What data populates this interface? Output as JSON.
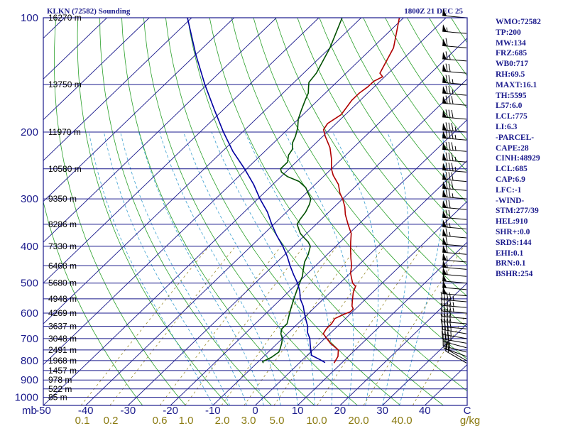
{
  "header": {
    "station_title": "KLKN (72582) Sounding",
    "valid_time": "1800Z 21 DEC 25"
  },
  "indices": [
    "WMO:72582",
    "TP:200",
    "MW:134",
    "FRZ:685",
    "WB0:717",
    "RH:69.5",
    "MAXT:16.1",
    "TH:5595",
    "L57:6.0",
    "LCL:775",
    "LI:6.3",
    "-PARCEL-",
    "CAPE:28",
    "CINH:48929",
    "LCL:685",
    "CAP:6.9",
    "LFC:-1",
    "-WIND-",
    "STM:277/39",
    "HEL:910",
    "SHR+:0.0",
    "SRDS:144",
    "EHI:0.1",
    "BRN:0.1",
    "BSHR:254"
  ],
  "colors": {
    "frame": "#1a1a8c",
    "isobar": "#1a1a8c",
    "isotherm": "#1a1a8c",
    "dry_adiabat": "#2aa02a",
    "moist_adiabat": "#3a9fd0",
    "mixing_ratio": "#8a7a10",
    "temperature": "#b00000",
    "dewpoint": "#005000",
    "parcel": "#0000a0",
    "wind_barb": "#000000"
  },
  "chart_data": {
    "type": "line",
    "title": "KLKN (72582) Sounding",
    "xlabel": "",
    "ylabel": "",
    "x_unit": "°C",
    "y_unit": "mb",
    "y_scale": "log",
    "xlim": [
      -50,
      50
    ],
    "ylim": [
      1000,
      100
    ],
    "pressure_ticks": [
      "100",
      "200",
      "300",
      "400",
      "500",
      "600",
      "700",
      "800",
      "900",
      "1000"
    ],
    "y_axis_unit_label": "mb",
    "temp_tick_labels": [
      "-50",
      "-40",
      "-30",
      "-20",
      "-10",
      "0",
      "10",
      "20",
      "30",
      "40",
      "C"
    ],
    "mixing_ratio_labels": [
      "0.1",
      "0.2",
      "0.6",
      "1.0",
      "2.0",
      "3.0",
      "5.0",
      "10.0",
      "20.0",
      "40.0",
      "g/kg"
    ],
    "height_labels": [
      {
        "p": 100,
        "label": "16270 m"
      },
      {
        "p": 150,
        "label": "13750 m"
      },
      {
        "p": 200,
        "label": "11970 m"
      },
      {
        "p": 250,
        "label": "10580 m"
      },
      {
        "p": 300,
        "label": "9350 m"
      },
      {
        "p": 350,
        "label": "8286 m"
      },
      {
        "p": 400,
        "label": "7330 m"
      },
      {
        "p": 450,
        "label": "6468 m"
      },
      {
        "p": 500,
        "label": "5680 m"
      },
      {
        "p": 550,
        "label": "4948 m"
      },
      {
        "p": 600,
        "label": "4269 m"
      },
      {
        "p": 650,
        "label": "3637 m"
      },
      {
        "p": 700,
        "label": "3048 m"
      },
      {
        "p": 750,
        "label": "2491 m"
      },
      {
        "p": 800,
        "label": "1968 m"
      },
      {
        "p": 850,
        "label": "1457 m"
      },
      {
        "p": 900,
        "label": "978 m"
      },
      {
        "p": 950,
        "label": "522 m"
      },
      {
        "p": 1000,
        "label": "85 m"
      }
    ],
    "series": [
      {
        "role": "temperature",
        "points": [
          [
            812,
            8.2
          ],
          [
            780,
            7.5
          ],
          [
            750,
            6.0
          ],
          [
            720,
            2.5
          ],
          [
            700,
            0.5
          ],
          [
            680,
            -1.5
          ],
          [
            660,
            -2.0
          ],
          [
            640,
            -2.0
          ],
          [
            620,
            -2.5
          ],
          [
            605,
            -1.5
          ],
          [
            595,
            -0.5
          ],
          [
            585,
            -0.5
          ],
          [
            575,
            -1.5
          ],
          [
            560,
            -2.5
          ],
          [
            545,
            -3.5
          ],
          [
            530,
            -4.5
          ],
          [
            510,
            -5.5
          ],
          [
            500,
            -7.0
          ],
          [
            485,
            -8.5
          ],
          [
            470,
            -10.0
          ],
          [
            450,
            -11.5
          ],
          [
            430,
            -13.5
          ],
          [
            410,
            -15.5
          ],
          [
            390,
            -17.5
          ],
          [
            370,
            -19.5
          ],
          [
            350,
            -22.5
          ],
          [
            330,
            -25.5
          ],
          [
            315,
            -27.5
          ],
          [
            300,
            -30.0
          ],
          [
            290,
            -32.0
          ],
          [
            275,
            -34.5
          ],
          [
            260,
            -38.0
          ],
          [
            250,
            -40.0
          ],
          [
            235,
            -42.5
          ],
          [
            220,
            -45.5
          ],
          [
            205,
            -49.5
          ],
          [
            197,
            -51.5
          ],
          [
            190,
            -52.0
          ],
          [
            180,
            -51.0
          ],
          [
            172,
            -51.5
          ],
          [
            165,
            -52.0
          ],
          [
            158,
            -52.0
          ],
          [
            152,
            -51.5
          ],
          [
            150,
            -51.5
          ],
          [
            147,
            -51.5
          ],
          [
            143,
            -50.5
          ],
          [
            140,
            -52.0
          ],
          [
            120,
            -55.0
          ],
          [
            100,
            -61.0
          ]
        ]
      },
      {
        "role": "dewpoint",
        "points": [
          [
            812,
            -8.5
          ],
          [
            805,
            -9.0
          ],
          [
            795,
            -8.5
          ],
          [
            785,
            -8.0
          ],
          [
            760,
            -7.5
          ],
          [
            745,
            -8.0
          ],
          [
            720,
            -9.0
          ],
          [
            700,
            -10.0
          ],
          [
            680,
            -11.5
          ],
          [
            660,
            -12.5
          ],
          [
            640,
            -12.5
          ],
          [
            620,
            -13.5
          ],
          [
            600,
            -14.5
          ],
          [
            580,
            -15.5
          ],
          [
            560,
            -16.5
          ],
          [
            540,
            -17.5
          ],
          [
            520,
            -18.5
          ],
          [
            500,
            -19.5
          ],
          [
            480,
            -20.5
          ],
          [
            460,
            -22.0
          ],
          [
            440,
            -23.5
          ],
          [
            420,
            -24.5
          ],
          [
            400,
            -26.0
          ],
          [
            390,
            -27.5
          ],
          [
            380,
            -29.5
          ],
          [
            370,
            -31.5
          ],
          [
            360,
            -33.0
          ],
          [
            350,
            -34.5
          ],
          [
            340,
            -35.0
          ],
          [
            325,
            -35.5
          ],
          [
            310,
            -36.5
          ],
          [
            300,
            -37.5
          ],
          [
            290,
            -39.5
          ],
          [
            280,
            -41.5
          ],
          [
            270,
            -44.5
          ],
          [
            262,
            -48.5
          ],
          [
            255,
            -51.0
          ],
          [
            250,
            -52.0
          ],
          [
            240,
            -52.0
          ],
          [
            230,
            -53.5
          ],
          [
            222,
            -54.0
          ],
          [
            214,
            -55.5
          ],
          [
            205,
            -56.5
          ],
          [
            195,
            -58.0
          ],
          [
            185,
            -60.0
          ],
          [
            175,
            -61.5
          ],
          [
            165,
            -63.0
          ],
          [
            158,
            -64.0
          ],
          [
            152,
            -65.5
          ],
          [
            148,
            -66.5
          ],
          [
            140,
            -67.0
          ],
          [
            120,
            -70.0
          ],
          [
            100,
            -74.5
          ]
        ]
      },
      {
        "role": "parcel",
        "points": [
          [
            810,
            6.0
          ],
          [
            795,
            4.0
          ],
          [
            775,
            1.0
          ],
          [
            750,
            -0.5
          ],
          [
            725,
            -2.0
          ],
          [
            700,
            -3.5
          ],
          [
            675,
            -5.5
          ],
          [
            650,
            -7.0
          ],
          [
            625,
            -9.0
          ],
          [
            600,
            -11.0
          ],
          [
            575,
            -13.0
          ],
          [
            550,
            -15.5
          ],
          [
            525,
            -17.5
          ],
          [
            500,
            -20.0
          ],
          [
            475,
            -23.0
          ],
          [
            450,
            -26.0
          ],
          [
            425,
            -29.0
          ],
          [
            400,
            -32.5
          ],
          [
            375,
            -36.5
          ],
          [
            350,
            -40.5
          ],
          [
            325,
            -44.5
          ],
          [
            300,
            -49.5
          ],
          [
            275,
            -54.5
          ],
          [
            250,
            -60.5
          ],
          [
            225,
            -67.5
          ],
          [
            200,
            -74.5
          ],
          [
            175,
            -82.0
          ],
          [
            150,
            -90.5
          ],
          [
            125,
            -100.0
          ],
          [
            100,
            -111.0
          ]
        ]
      }
    ],
    "wind_barbs": [
      {
        "p": 812,
        "dir": 300,
        "kt": 15
      },
      {
        "p": 800,
        "dir": 300,
        "kt": 20
      },
      {
        "p": 780,
        "dir": 290,
        "kt": 25
      },
      {
        "p": 760,
        "dir": 285,
        "kt": 30
      },
      {
        "p": 740,
        "dir": 285,
        "kt": 30
      },
      {
        "p": 720,
        "dir": 280,
        "kt": 35
      },
      {
        "p": 700,
        "dir": 280,
        "kt": 35
      },
      {
        "p": 680,
        "dir": 280,
        "kt": 35
      },
      {
        "p": 660,
        "dir": 275,
        "kt": 40
      },
      {
        "p": 640,
        "dir": 275,
        "kt": 40
      },
      {
        "p": 620,
        "dir": 275,
        "kt": 40
      },
      {
        "p": 600,
        "dir": 275,
        "kt": 45
      },
      {
        "p": 580,
        "dir": 275,
        "kt": 45
      },
      {
        "p": 560,
        "dir": 275,
        "kt": 45
      },
      {
        "p": 540,
        "dir": 275,
        "kt": 50
      },
      {
        "p": 520,
        "dir": 275,
        "kt": 50
      },
      {
        "p": 500,
        "dir": 275,
        "kt": 50
      },
      {
        "p": 480,
        "dir": 275,
        "kt": 55
      },
      {
        "p": 460,
        "dir": 275,
        "kt": 55
      },
      {
        "p": 440,
        "dir": 275,
        "kt": 55
      },
      {
        "p": 420,
        "dir": 275,
        "kt": 60
      },
      {
        "p": 400,
        "dir": 275,
        "kt": 60
      },
      {
        "p": 380,
        "dir": 275,
        "kt": 65
      },
      {
        "p": 360,
        "dir": 275,
        "kt": 65
      },
      {
        "p": 340,
        "dir": 275,
        "kt": 70
      },
      {
        "p": 320,
        "dir": 275,
        "kt": 70
      },
      {
        "p": 300,
        "dir": 275,
        "kt": 75
      },
      {
        "p": 285,
        "dir": 275,
        "kt": 80
      },
      {
        "p": 270,
        "dir": 275,
        "kt": 80
      },
      {
        "p": 255,
        "dir": 275,
        "kt": 85
      },
      {
        "p": 240,
        "dir": 275,
        "kt": 85
      },
      {
        "p": 225,
        "dir": 275,
        "kt": 85
      },
      {
        "p": 210,
        "dir": 275,
        "kt": 85
      },
      {
        "p": 200,
        "dir": 275,
        "kt": 85
      },
      {
        "p": 185,
        "dir": 275,
        "kt": 80
      },
      {
        "p": 170,
        "dir": 275,
        "kt": 80
      },
      {
        "p": 160,
        "dir": 275,
        "kt": 75
      },
      {
        "p": 150,
        "dir": 275,
        "kt": 75
      },
      {
        "p": 140,
        "dir": 275,
        "kt": 70
      },
      {
        "p": 130,
        "dir": 275,
        "kt": 65
      },
      {
        "p": 120,
        "dir": 275,
        "kt": 60
      },
      {
        "p": 110,
        "dir": 275,
        "kt": 55
      },
      {
        "p": 100,
        "dir": 275,
        "kt": 50
      }
    ]
  }
}
